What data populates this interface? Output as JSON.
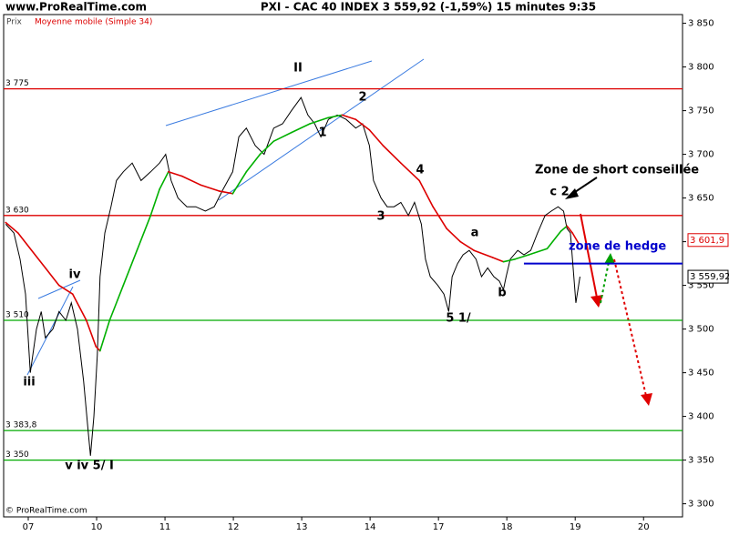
{
  "chart_data": {
    "type": "line",
    "title": "PXI - CAC 40 INDEX   3 559,92 (-1,59%)   15 minutes  9:35",
    "site": "www.ProRealTime.com",
    "footer": "© ProRealTime.com",
    "legend": [
      "Prix",
      "Moyenne mobile (Simple 34)"
    ],
    "xlim": [
      -0.36,
      9.57
    ],
    "xticks": [
      {
        "value": 0,
        "label": "07"
      },
      {
        "value": 1,
        "label": "10"
      },
      {
        "value": 2,
        "label": "11"
      },
      {
        "value": 3,
        "label": "12"
      },
      {
        "value": 4,
        "label": "13"
      },
      {
        "value": 5,
        "label": "14"
      },
      {
        "value": 6,
        "label": "17"
      },
      {
        "value": 7,
        "label": "18"
      },
      {
        "value": 8,
        "label": "19"
      },
      {
        "value": 9,
        "label": "20"
      }
    ],
    "ylim": [
      3285,
      3860
    ],
    "yticks": [
      {
        "value": 3300,
        "label": "3 300"
      },
      {
        "value": 3350,
        "label": "3 350"
      },
      {
        "value": 3400,
        "label": "3 400"
      },
      {
        "value": 3450,
        "label": "3 450"
      },
      {
        "value": 3500,
        "label": "3 500"
      },
      {
        "value": 3550,
        "label": "3 550"
      },
      {
        "value": 3600,
        "label": "3 600"
      },
      {
        "value": 3650,
        "label": "3 650"
      },
      {
        "value": 3700,
        "label": "3 700"
      },
      {
        "value": 3750,
        "label": "3 750"
      },
      {
        "value": 3800,
        "label": "3 800"
      },
      {
        "value": 3850,
        "label": "3 850"
      }
    ],
    "series": [
      {
        "name": "Prix",
        "color": "#000000",
        "x": [
          -0.33,
          -0.21,
          -0.12,
          -0.04,
          0.03,
          0.12,
          0.19,
          0.25,
          0.36,
          0.45,
          0.55,
          0.63,
          0.72,
          0.81,
          0.88,
          0.91,
          0.96,
          1.01,
          1.05,
          1.12,
          1.21,
          1.29,
          1.39,
          1.52,
          1.65,
          1.79,
          1.92,
          2.01,
          2.09,
          2.19,
          2.32,
          2.45,
          2.59,
          2.72,
          2.85,
          2.99,
          3.08,
          3.19,
          3.32,
          3.45,
          3.59,
          3.72,
          3.85,
          3.99,
          4.09,
          4.19,
          4.28,
          4.39,
          4.52,
          4.65,
          4.79,
          4.89,
          4.99,
          5.05,
          5.16,
          5.25,
          5.35,
          5.45,
          5.56,
          5.65,
          5.75,
          5.81,
          5.88,
          5.99,
          6.08,
          6.15,
          6.2,
          6.28,
          6.36,
          6.45,
          6.55,
          6.63,
          6.72,
          6.81,
          6.89,
          6.95,
          6.99,
          7.05,
          7.16,
          7.25,
          7.35,
          7.45,
          7.56,
          7.65,
          7.75,
          7.83,
          7.88,
          7.93,
          8.01,
          8.07
        ],
        "values": [
          3620,
          3610,
          3580,
          3540,
          3450,
          3500,
          3520,
          3490,
          3500,
          3520,
          3510,
          3530,
          3500,
          3440,
          3380,
          3355,
          3400,
          3470,
          3560,
          3610,
          3640,
          3670,
          3680,
          3690,
          3670,
          3680,
          3690,
          3700,
          3670,
          3650,
          3640,
          3640,
          3635,
          3640,
          3660,
          3680,
          3720,
          3730,
          3710,
          3700,
          3730,
          3735,
          3750,
          3765,
          3745,
          3735,
          3720,
          3740,
          3745,
          3740,
          3730,
          3735,
          3710,
          3670,
          3650,
          3640,
          3640,
          3645,
          3630,
          3645,
          3620,
          3580,
          3560,
          3550,
          3540,
          3520,
          3560,
          3575,
          3585,
          3590,
          3580,
          3560,
          3570,
          3560,
          3555,
          3545,
          3560,
          3580,
          3590,
          3585,
          3590,
          3610,
          3630,
          3635,
          3640,
          3635,
          3615,
          3610,
          3530,
          3560
        ]
      },
      {
        "name": "Moyenne mobile (Simple 34)",
        "color_down": "#dd0000",
        "color_up": "#00b000",
        "x": [
          -0.33,
          -0.15,
          0.05,
          0.25,
          0.45,
          0.65,
          0.85,
          0.99,
          1.05,
          1.19,
          1.39,
          1.59,
          1.79,
          1.92,
          2.05,
          2.25,
          2.52,
          2.79,
          2.99,
          3.19,
          3.39,
          3.59,
          3.85,
          4.12,
          4.39,
          4.59,
          4.79,
          4.99,
          5.19,
          5.45,
          5.72,
          5.92,
          6.12,
          6.32,
          6.52,
          6.79,
          6.95,
          7.12,
          7.32,
          7.59,
          7.79,
          7.88,
          7.96,
          8.05
        ],
        "values": [
          3622,
          3610,
          3590,
          3570,
          3550,
          3540,
          3510,
          3480,
          3475,
          3510,
          3550,
          3590,
          3630,
          3660,
          3680,
          3675,
          3665,
          3658,
          3655,
          3680,
          3700,
          3715,
          3725,
          3735,
          3742,
          3745,
          3740,
          3728,
          3710,
          3690,
          3670,
          3640,
          3615,
          3600,
          3590,
          3582,
          3577,
          3580,
          3585,
          3592,
          3612,
          3618,
          3610,
          3598
        ]
      }
    ],
    "levels": [
      {
        "value": 3775,
        "label": "3 775",
        "color": "#dd0000"
      },
      {
        "value": 3630,
        "label": "3 630",
        "color": "#dd0000"
      },
      {
        "value": 3510,
        "label": "3 510",
        "color": "#00aa00"
      },
      {
        "value": 3383.8,
        "label": "3 383,8",
        "color": "#00aa00"
      },
      {
        "value": 3350,
        "label": "3 350",
        "color": "#00aa00"
      }
    ],
    "hedge_level": {
      "value": 3575,
      "x_start": 7.25,
      "color": "#0000cc"
    },
    "price_tags": [
      {
        "value": 3601.9,
        "label": "3 601,9",
        "color": "#dd0000"
      },
      {
        "value": 3559.92,
        "label": "3 559,92",
        "color": "#000000"
      }
    ],
    "annotations": [
      "II",
      "2",
      "1",
      "4",
      "3",
      "a",
      "b",
      "c 2",
      "5 1/",
      "iv",
      "iii",
      "v iv 5/ I",
      "Zone de short conseillée",
      "zone de hedge"
    ]
  }
}
